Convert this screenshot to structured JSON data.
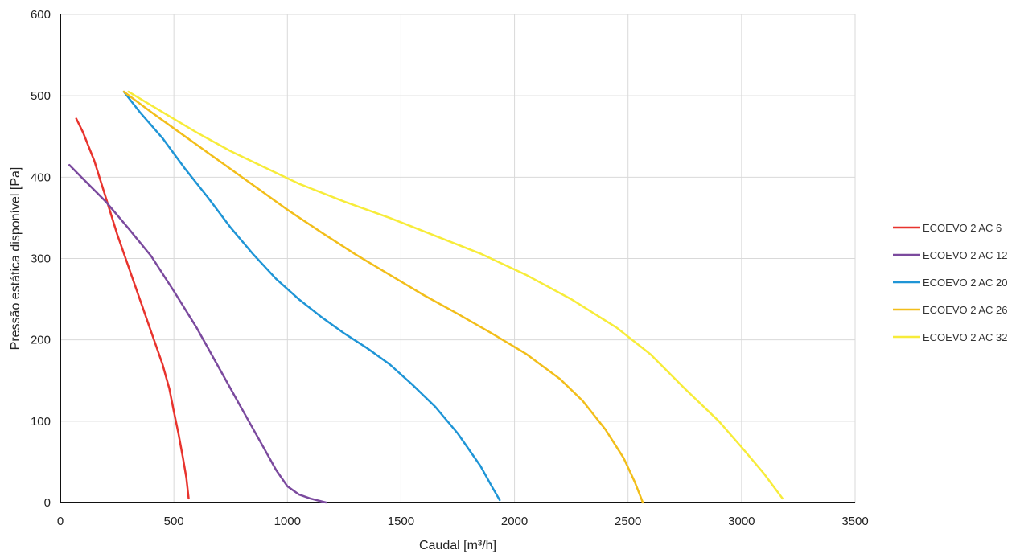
{
  "chart_data": {
    "type": "line",
    "title": "",
    "xlabel": "Caudal [m³/h]",
    "ylabel": "Pressão estática disponível [Pa]",
    "xlim": [
      0,
      3500
    ],
    "ylim": [
      0,
      600
    ],
    "x_ticks": [
      "0",
      "500",
      "1000",
      "1500",
      "2000",
      "2500",
      "3000",
      "3500"
    ],
    "y_ticks": [
      "0",
      "100",
      "200",
      "300",
      "400",
      "500",
      "600"
    ],
    "grid": true,
    "legend_position": "right",
    "series": [
      {
        "name": "ECOEVO 2 AC 6",
        "color": "#e8332d",
        "points": [
          [
            70,
            472
          ],
          [
            100,
            455
          ],
          [
            150,
            420
          ],
          [
            200,
            375
          ],
          [
            250,
            330
          ],
          [
            300,
            290
          ],
          [
            350,
            250
          ],
          [
            400,
            210
          ],
          [
            450,
            170
          ],
          [
            480,
            140
          ],
          [
            500,
            112
          ],
          [
            520,
            85
          ],
          [
            540,
            55
          ],
          [
            555,
            30
          ],
          [
            565,
            5
          ]
        ]
      },
      {
        "name": "ECOEVO 2 AC 12",
        "color": "#7b4a9e",
        "points": [
          [
            40,
            415
          ],
          [
            100,
            398
          ],
          [
            200,
            370
          ],
          [
            300,
            337
          ],
          [
            400,
            303
          ],
          [
            500,
            260
          ],
          [
            600,
            215
          ],
          [
            700,
            165
          ],
          [
            800,
            115
          ],
          [
            900,
            65
          ],
          [
            950,
            40
          ],
          [
            1000,
            20
          ],
          [
            1050,
            10
          ],
          [
            1100,
            5
          ],
          [
            1170,
            0
          ]
        ]
      },
      {
        "name": "ECOEVO 2 AC 20",
        "color": "#1f95d6",
        "points": [
          [
            280,
            505
          ],
          [
            350,
            480
          ],
          [
            450,
            448
          ],
          [
            550,
            410
          ],
          [
            650,
            375
          ],
          [
            750,
            338
          ],
          [
            850,
            305
          ],
          [
            950,
            275
          ],
          [
            1050,
            250
          ],
          [
            1150,
            228
          ],
          [
            1250,
            208
          ],
          [
            1350,
            190
          ],
          [
            1450,
            170
          ],
          [
            1550,
            145
          ],
          [
            1650,
            118
          ],
          [
            1750,
            85
          ],
          [
            1850,
            45
          ],
          [
            1900,
            20
          ],
          [
            1935,
            3
          ]
        ]
      },
      {
        "name": "ECOEVO 2 AC 26",
        "color": "#f2be1a",
        "points": [
          [
            280,
            505
          ],
          [
            400,
            480
          ],
          [
            550,
            450
          ],
          [
            700,
            420
          ],
          [
            850,
            390
          ],
          [
            1000,
            360
          ],
          [
            1150,
            332
          ],
          [
            1300,
            305
          ],
          [
            1450,
            280
          ],
          [
            1600,
            255
          ],
          [
            1750,
            232
          ],
          [
            1900,
            208
          ],
          [
            2050,
            183
          ],
          [
            2200,
            152
          ],
          [
            2300,
            125
          ],
          [
            2400,
            90
          ],
          [
            2480,
            55
          ],
          [
            2530,
            25
          ],
          [
            2565,
            0
          ]
        ]
      },
      {
        "name": "ECOEVO 2 AC 32",
        "color": "#f7ec3a",
        "points": [
          [
            300,
            505
          ],
          [
            450,
            480
          ],
          [
            600,
            455
          ],
          [
            750,
            432
          ],
          [
            900,
            412
          ],
          [
            1050,
            392
          ],
          [
            1250,
            370
          ],
          [
            1450,
            350
          ],
          [
            1650,
            328
          ],
          [
            1850,
            306
          ],
          [
            2050,
            280
          ],
          [
            2250,
            250
          ],
          [
            2450,
            215
          ],
          [
            2600,
            182
          ],
          [
            2750,
            140
          ],
          [
            2900,
            100
          ],
          [
            3000,
            68
          ],
          [
            3100,
            35
          ],
          [
            3180,
            5
          ]
        ]
      }
    ]
  }
}
